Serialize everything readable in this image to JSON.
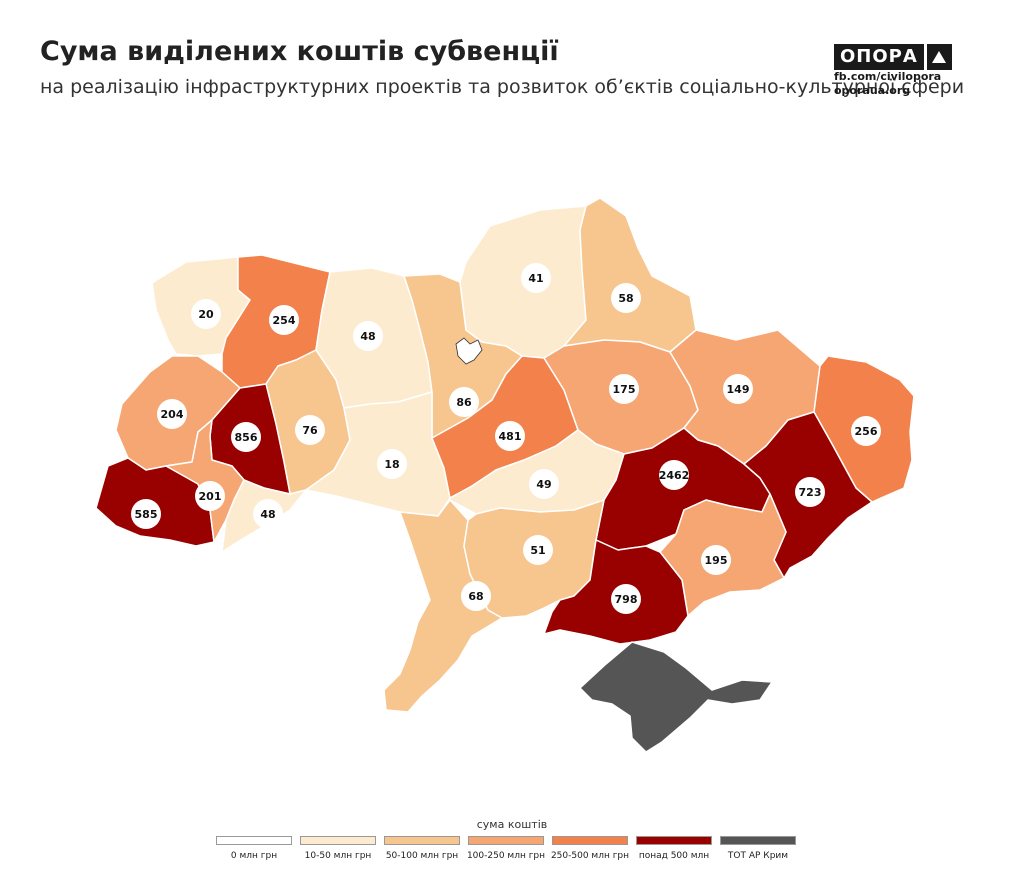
{
  "title": "Сума виділених коштів субвенції",
  "subtitle": "на реалізацію інфраструктурних проектів та розвиток об’єктів соціально-культурної сфери",
  "brand": {
    "name": "ОПОРА",
    "line1": "fb.com/civilopora",
    "line2": "oporaua.org"
  },
  "regions": [
    {
      "id": "volyn",
      "value": "20",
      "bin": 1
    },
    {
      "id": "rivne",
      "value": "254",
      "bin": 4
    },
    {
      "id": "zhytomyr",
      "value": "48",
      "bin": 1
    },
    {
      "id": "kyiv-oblast",
      "value": "86",
      "bin": 2
    },
    {
      "id": "chernihiv",
      "value": "41",
      "bin": 1
    },
    {
      "id": "sumy",
      "value": "58",
      "bin": 2
    },
    {
      "id": "lviv",
      "value": "204",
      "bin": 3
    },
    {
      "id": "ternopil",
      "value": "76",
      "bin": 2
    },
    {
      "id": "khmelnytskyi",
      "value": "856",
      "bin": 5
    },
    {
      "id": "vinnytsia",
      "value": "18",
      "bin": 1
    },
    {
      "id": "cherkasy",
      "value": "481",
      "bin": 4
    },
    {
      "id": "poltava",
      "value": "175",
      "bin": 3
    },
    {
      "id": "kharkiv",
      "value": "149",
      "bin": 3
    },
    {
      "id": "luhansk",
      "value": "256",
      "bin": 4
    },
    {
      "id": "zakarpattia",
      "value": "585",
      "bin": 5
    },
    {
      "id": "ivano-frankivsk",
      "value": "201",
      "bin": 3
    },
    {
      "id": "chernivtsi",
      "value": "48",
      "bin": 1
    },
    {
      "id": "kirovohrad",
      "value": "49",
      "bin": 1
    },
    {
      "id": "dnipropetrovsk",
      "value": "2462",
      "bin": 5
    },
    {
      "id": "donetsk",
      "value": "723",
      "bin": 5
    },
    {
      "id": "zaporizhzhia",
      "value": "195",
      "bin": 3
    },
    {
      "id": "odesa",
      "value": "68",
      "bin": 2
    },
    {
      "id": "mykolaiv",
      "value": "51",
      "bin": 2
    },
    {
      "id": "kherson",
      "value": "798",
      "bin": 5
    },
    {
      "id": "crimea",
      "value": "",
      "bin": 6
    }
  ],
  "legend": {
    "title": "сума коштів",
    "items": [
      {
        "label": "0 млн грн",
        "color": "#ffffff"
      },
      {
        "label": "10-50 млн грн",
        "color": "#fdebcf"
      },
      {
        "label": "50-100 млн грн",
        "color": "#f7c58e"
      },
      {
        "label": "100-250 млн грн",
        "color": "#f5a673"
      },
      {
        "label": "250-500 млн грн",
        "color": "#f3814b"
      },
      {
        "label": "понад 500 млн",
        "color": "#990000"
      },
      {
        "label": "ТОТ АР Крим",
        "color": "#555555"
      }
    ]
  },
  "colors": {
    "bins": [
      "#ffffff",
      "#fdebcf",
      "#f7c58e",
      "#f5a673",
      "#f3814b",
      "#990000",
      "#555555"
    ],
    "border": "#ffffff",
    "label_bg": "#ffffff"
  }
}
